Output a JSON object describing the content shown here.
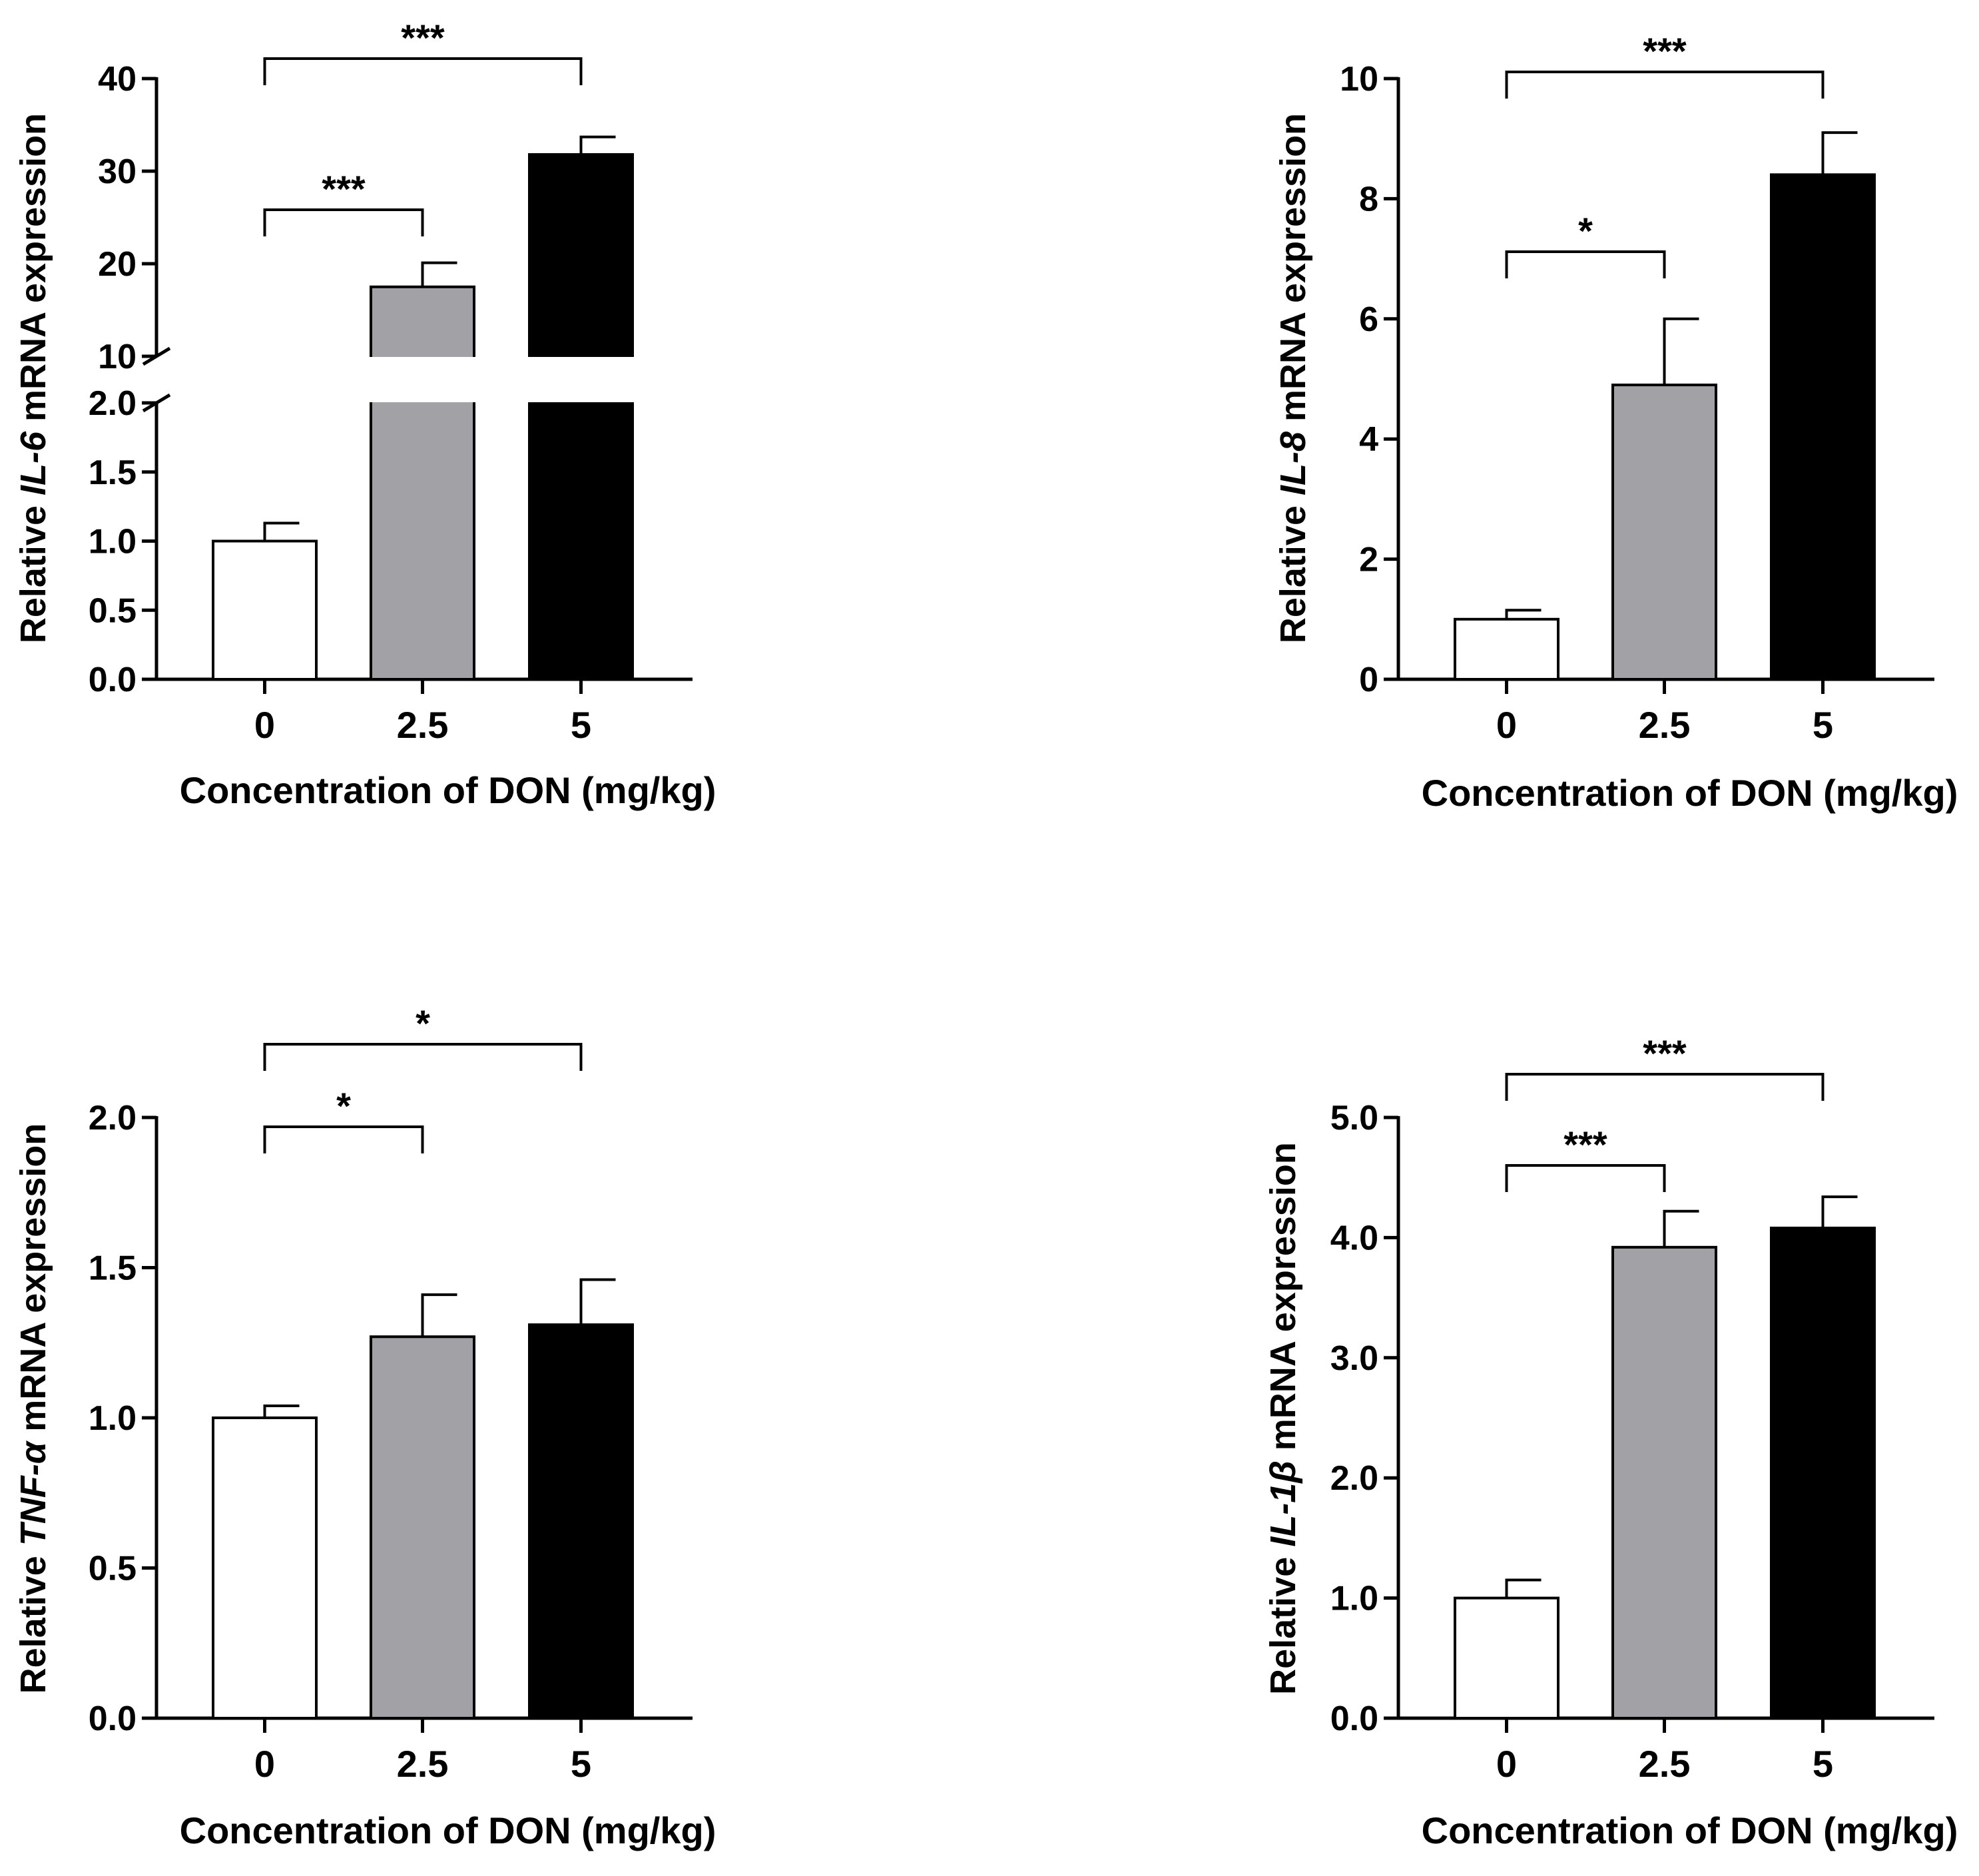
{
  "colors": {
    "axis": "#000000",
    "bar_0": "#ffffff",
    "bar_2_5": "#a1a1a6",
    "bar_5": "#000000"
  },
  "chart_data": [
    {
      "type": "bar",
      "panel": "top-left",
      "gene": "IL-6",
      "ylabel_prefix": "Relative ",
      "ylabel_suffix": " mRNA expression",
      "xlabel": "Concentration of DON (mg/kg)",
      "categories": [
        "0",
        "2.5",
        "5"
      ],
      "values": [
        1.0,
        17.5,
        31.8
      ],
      "errors": [
        0.13,
        2.6,
        1.9
      ],
      "broken_axis": true,
      "lower_ylim": [
        0,
        2
      ],
      "upper_ylim": [
        10,
        40
      ],
      "lower_ticks": [
        "0.0",
        "0.5",
        "1.0",
        "1.5",
        "2.0"
      ],
      "upper_ticks": [
        "10",
        "20",
        "30",
        "40"
      ],
      "significance": [
        {
          "from": 0,
          "to": 1,
          "label": "***"
        },
        {
          "from": 0,
          "to": 2,
          "label": "***"
        }
      ]
    },
    {
      "type": "bar",
      "panel": "top-right",
      "gene": "IL-8",
      "ylabel_prefix": "Relative ",
      "ylabel_suffix": " mRNA expression",
      "xlabel": "Concentration of DON (mg/kg)",
      "categories": [
        "0",
        "2.5",
        "5"
      ],
      "values": [
        1.0,
        4.9,
        8.4
      ],
      "errors": [
        0.15,
        1.1,
        0.7
      ],
      "ylim": [
        0,
        10
      ],
      "ticks": [
        "0",
        "2",
        "4",
        "6",
        "8",
        "10"
      ],
      "significance": [
        {
          "from": 0,
          "to": 1,
          "label": "*"
        },
        {
          "from": 0,
          "to": 2,
          "label": "***"
        }
      ]
    },
    {
      "type": "bar",
      "panel": "bottom-left",
      "gene": "TNF-α",
      "ylabel_prefix": "Relative ",
      "ylabel_suffix": " mRNA expression",
      "xlabel": "Concentration of DON (mg/kg)",
      "categories": [
        "0",
        "2.5",
        "5"
      ],
      "values": [
        1.0,
        1.27,
        1.31
      ],
      "errors": [
        0.04,
        0.14,
        0.15
      ],
      "ylim": [
        0,
        2
      ],
      "ticks": [
        "0.0",
        "0.5",
        "1.0",
        "1.5",
        "2.0"
      ],
      "significance": [
        {
          "from": 0,
          "to": 1,
          "label": "*"
        },
        {
          "from": 0,
          "to": 2,
          "label": "*"
        }
      ]
    },
    {
      "type": "bar",
      "panel": "bottom-right",
      "gene": "IL-1β",
      "ylabel_prefix": "Relative ",
      "ylabel_suffix": " mRNA expression",
      "xlabel": "Concentration of DON (mg/kg)",
      "categories": [
        "0",
        "2.5",
        "5"
      ],
      "values": [
        1.0,
        3.92,
        4.08
      ],
      "errors": [
        0.15,
        0.3,
        0.26
      ],
      "ylim": [
        0,
        5
      ],
      "ticks": [
        "0.0",
        "1.0",
        "2.0",
        "3.0",
        "4.0",
        "5.0"
      ],
      "significance": [
        {
          "from": 0,
          "to": 1,
          "label": "***"
        },
        {
          "from": 0,
          "to": 2,
          "label": "***"
        }
      ]
    }
  ]
}
